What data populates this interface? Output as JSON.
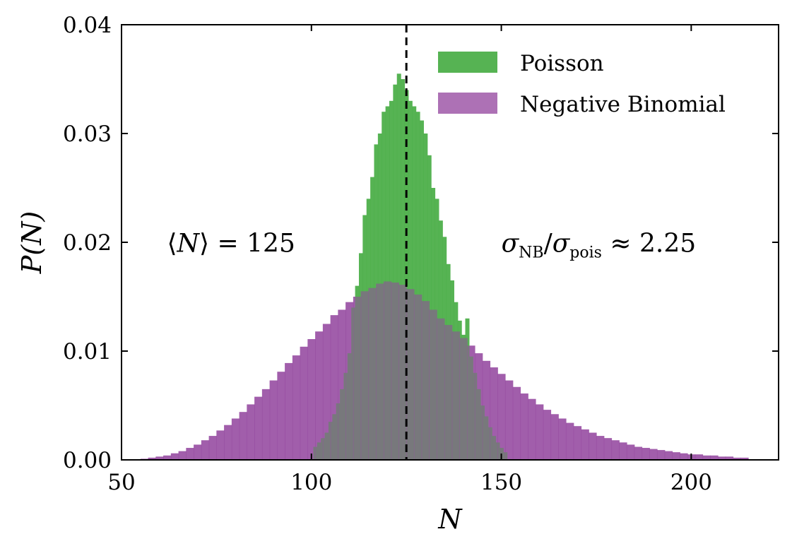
{
  "chart_data": {
    "type": "histogram",
    "xlabel": "N",
    "ylabel": "P(N)",
    "xlim": [
      50,
      223
    ],
    "ylim": [
      0,
      0.04
    ],
    "xticks": [
      50,
      100,
      150,
      200
    ],
    "xtick_labels": [
      "50",
      "100",
      "150",
      "200"
    ],
    "yticks": [
      0.0,
      0.01,
      0.02,
      0.03,
      0.04
    ],
    "ytick_labels": [
      "0.00",
      "0.01",
      "0.02",
      "0.03",
      "0.04"
    ],
    "legend_position": "top-right",
    "grid": false,
    "vline": {
      "x": 125,
      "style": "dashed",
      "color": "#000000"
    },
    "annotations": [
      {
        "text": "⟨N⟩ = 125",
        "x": 62,
        "y": 0.0195
      },
      {
        "text": "σNB/σpois ≈ 2.25",
        "x": 150,
        "y": 0.0195
      }
    ],
    "series": [
      {
        "name": "Poisson",
        "color": "#4daf4a",
        "mean": 125,
        "bin_centers": [
          101,
          102,
          103,
          104,
          105,
          106,
          107,
          108,
          109,
          110,
          111,
          112,
          113,
          114,
          115,
          116,
          117,
          118,
          119,
          120,
          121,
          122,
          123,
          124,
          125,
          126,
          127,
          128,
          129,
          130,
          131,
          132,
          133,
          134,
          135,
          136,
          137,
          138,
          139,
          140,
          141,
          142,
          143,
          144,
          145,
          146,
          147,
          148,
          149,
          150,
          151
        ],
        "values": [
          0.0012,
          0.0016,
          0.002,
          0.0025,
          0.0035,
          0.0042,
          0.0052,
          0.0065,
          0.008,
          0.0098,
          0.014,
          0.016,
          0.019,
          0.0225,
          0.024,
          0.026,
          0.029,
          0.03,
          0.032,
          0.0325,
          0.033,
          0.0345,
          0.0355,
          0.035,
          0.034,
          0.033,
          0.0325,
          0.032,
          0.0312,
          0.03,
          0.028,
          0.025,
          0.024,
          0.022,
          0.0205,
          0.018,
          0.0165,
          0.0145,
          0.0128,
          0.0115,
          0.013,
          0.0095,
          0.008,
          0.0065,
          0.005,
          0.004,
          0.003,
          0.0022,
          0.0016,
          0.0011,
          0.0007
        ]
      },
      {
        "name": "Negative Binomial",
        "color": "#984ea3",
        "mean": 125,
        "bin_centers": [
          56,
          58,
          60,
          62,
          64,
          66,
          68,
          70,
          72,
          74,
          76,
          78,
          80,
          82,
          84,
          86,
          88,
          90,
          92,
          94,
          96,
          98,
          100,
          102,
          104,
          106,
          108,
          110,
          112,
          114,
          116,
          118,
          120,
          122,
          124,
          126,
          128,
          130,
          132,
          134,
          136,
          138,
          140,
          142,
          144,
          146,
          148,
          150,
          152,
          154,
          156,
          158,
          160,
          162,
          164,
          166,
          168,
          170,
          172,
          174,
          176,
          178,
          180,
          182,
          184,
          186,
          188,
          190,
          192,
          194,
          196,
          198,
          200,
          202,
          204,
          206,
          208,
          210,
          212,
          214
        ],
        "values": [
          0.0001,
          0.0002,
          0.0003,
          0.0004,
          0.0006,
          0.0008,
          0.0011,
          0.0014,
          0.0018,
          0.0022,
          0.0027,
          0.0032,
          0.0038,
          0.0044,
          0.0051,
          0.0058,
          0.0065,
          0.0073,
          0.0081,
          0.0089,
          0.0096,
          0.0104,
          0.0111,
          0.0118,
          0.0125,
          0.0133,
          0.0138,
          0.0145,
          0.015,
          0.0155,
          0.0158,
          0.0162,
          0.0164,
          0.0163,
          0.0161,
          0.0157,
          0.0152,
          0.0146,
          0.0138,
          0.013,
          0.0124,
          0.0118,
          0.0112,
          0.0105,
          0.0098,
          0.0091,
          0.0085,
          0.0079,
          0.0073,
          0.0067,
          0.0061,
          0.0056,
          0.0051,
          0.0046,
          0.0042,
          0.0038,
          0.0034,
          0.0031,
          0.0028,
          0.0025,
          0.0022,
          0.002,
          0.0018,
          0.0016,
          0.0014,
          0.0012,
          0.0011,
          0.001,
          0.0009,
          0.0008,
          0.0007,
          0.0006,
          0.0005,
          0.0005,
          0.0004,
          0.0004,
          0.0003,
          0.0003,
          0.0002,
          0.0002
        ]
      }
    ]
  }
}
